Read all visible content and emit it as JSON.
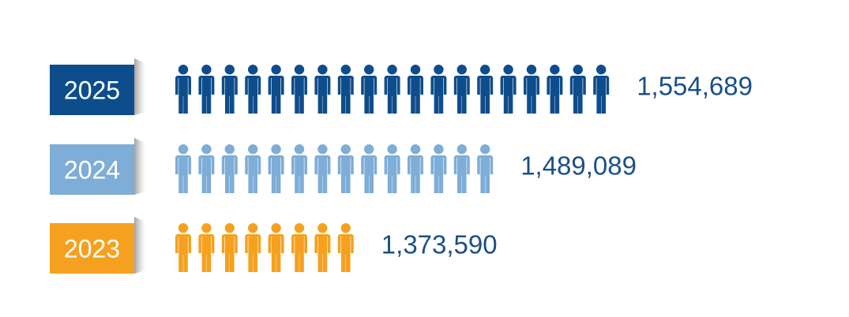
{
  "chart_data": {
    "type": "pictograph",
    "categories": [
      "2025",
      "2024",
      "2023"
    ],
    "values": [
      1554689,
      1489089,
      1373590
    ],
    "value_labels": [
      "1,554,689",
      "1,489,089",
      "1,373,590"
    ],
    "icon_counts": [
      19,
      14,
      8
    ],
    "colors": [
      "#0e4d8c",
      "#7eadd7",
      "#f5a11f"
    ],
    "label_color": "#1b4f86"
  }
}
